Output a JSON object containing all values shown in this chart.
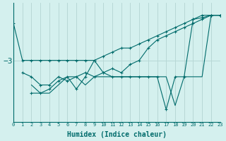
{
  "xlabel": "Humidex (Indice chaleur)",
  "background_color": "#d4f0ee",
  "line_color": "#006b6b",
  "grid_color": "#b8d8d6",
  "xlim": [
    0,
    23
  ],
  "ylim": [
    -3.75,
    -2.3
  ],
  "ytick_val": -3.0,
  "ytick_label": "−3",
  "lines": [
    {
      "x": [
        0,
        1,
        2,
        3,
        4,
        5,
        6,
        7,
        8,
        9,
        10,
        11,
        12,
        13,
        14,
        15,
        16,
        17,
        18,
        19,
        20,
        21,
        22,
        23
      ],
      "y": [
        -2.55,
        -3.0,
        -3.0,
        -3.0,
        -3.0,
        -3.0,
        -3.0,
        -3.0,
        -3.0,
        -3.0,
        -2.95,
        -2.9,
        -2.85,
        -2.85,
        -2.8,
        -2.75,
        -2.7,
        -2.65,
        -2.6,
        -2.55,
        -2.5,
        -2.48,
        -2.45,
        -2.45
      ],
      "marker": "+"
    },
    {
      "x": [
        1,
        2,
        3,
        4,
        5,
        6,
        7,
        8,
        9,
        10,
        11,
        12,
        13,
        14,
        15,
        16,
        17,
        18,
        19,
        20,
        21,
        22,
        23
      ],
      "y": [
        -3.15,
        -3.2,
        -3.3,
        -3.3,
        -3.2,
        -3.25,
        -3.2,
        -3.15,
        -3.2,
        -3.15,
        -3.1,
        -3.15,
        -3.05,
        -3.0,
        -2.85,
        -2.75,
        -2.7,
        -2.65,
        -2.6,
        -2.55,
        -2.5,
        -2.45,
        -2.45
      ],
      "marker": "+"
    },
    {
      "x": [
        2,
        3,
        4,
        5,
        6,
        7,
        8,
        9,
        10,
        11,
        12,
        13,
        14,
        15,
        16,
        17,
        18,
        19,
        20,
        21,
        22,
        23
      ],
      "y": [
        -3.3,
        -3.4,
        -3.4,
        -3.3,
        -3.2,
        -3.2,
        -3.3,
        -3.2,
        -3.2,
        -3.2,
        -3.2,
        -3.2,
        -3.2,
        -3.2,
        -3.2,
        -3.2,
        -3.55,
        -3.2,
        -3.2,
        -3.2,
        -2.45,
        -2.45
      ],
      "marker": null
    },
    {
      "x": [
        2,
        3,
        4,
        5,
        6,
        7,
        8,
        9,
        10,
        11,
        12,
        13,
        14,
        15,
        16,
        17,
        18,
        19,
        20,
        21,
        22,
        23
      ],
      "y": [
        -3.4,
        -3.4,
        -3.35,
        -3.25,
        -3.2,
        -3.35,
        -3.2,
        -3.0,
        -3.15,
        -3.2,
        -3.2,
        -3.2,
        -3.2,
        -3.2,
        -3.2,
        -3.6,
        -3.2,
        -3.2,
        -2.5,
        -2.45,
        -2.45,
        -2.45
      ],
      "marker": "+"
    }
  ]
}
